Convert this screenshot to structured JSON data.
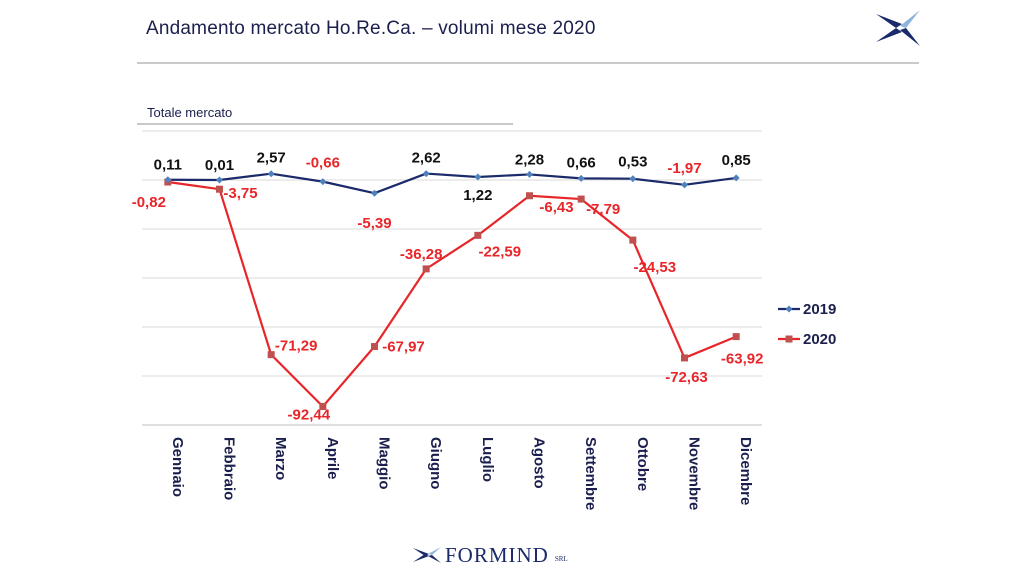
{
  "header": {
    "title": "Andamento mercato Ho.Re.Ca. – volumi mese 2020",
    "subtitle": "Totale mercato"
  },
  "footer": {
    "brand": "FORMIND",
    "suffix": "SRL"
  },
  "colors": {
    "series_2019": "#1b2a6b",
    "series_2020": "#e8262a",
    "grid": "#d9d9d9",
    "label_2019": "#111111",
    "label_2020": "#e8262a",
    "category": "#1b1f4d"
  },
  "chart_data": {
    "type": "line",
    "title": "",
    "xlabel": "",
    "ylabel": "",
    "categories": [
      "Gennaio",
      "Febbraio",
      "Marzo",
      "Aprile",
      "Maggio",
      "Giugno",
      "Luglio",
      "Agosto",
      "Settembre",
      "Ottobre",
      "Novembre",
      "Dicembre"
    ],
    "series": [
      {
        "name": "2019",
        "values": [
          0.11,
          0.01,
          2.57,
          -0.66,
          -5.39,
          2.62,
          1.22,
          2.28,
          0.66,
          0.53,
          -1.97,
          0.85
        ],
        "labels": [
          "0,11",
          "0,01",
          "2,57",
          "-0,66",
          "-5,39",
          "2,62",
          "1,22",
          "2,28",
          "0,66",
          "0,53",
          "-1,97",
          "0,85"
        ]
      },
      {
        "name": "2020",
        "values": [
          -0.82,
          -3.75,
          -71.29,
          -92.44,
          -67.97,
          -36.28,
          -22.59,
          -6.43,
          -7.79,
          -24.53,
          -72.63,
          -63.92
        ],
        "labels": [
          "-0,82",
          "-3,75",
          "-71,29",
          "-92,44",
          "-67,97",
          "-36,28",
          "-22,59",
          "-6,43",
          "-7,79",
          "-24,53",
          "-72,63",
          "-63,92"
        ]
      }
    ],
    "ylim": [
      -100,
      20
    ],
    "grid": true,
    "legend": "right"
  }
}
